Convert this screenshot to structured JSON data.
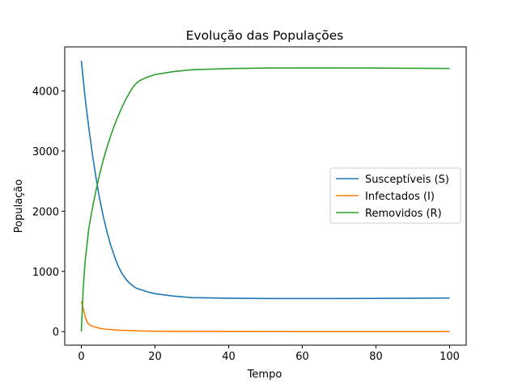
{
  "chart_data": {
    "type": "line",
    "title": "Evolução das Populações",
    "xlabel": "Tempo",
    "ylabel": "População",
    "xlim": [
      -4.5,
      104.5
    ],
    "ylim": [
      -225,
      4730
    ],
    "xticks": [
      0,
      20,
      40,
      60,
      80,
      100
    ],
    "yticks": [
      0,
      1000,
      2000,
      3000,
      4000
    ],
    "grid": false,
    "legend_position": "center-right",
    "series": [
      {
        "name": "Susceptíveis (S)",
        "color": "#1f77b4",
        "x": [
          0,
          1,
          2,
          3,
          4,
          5,
          6,
          7,
          8,
          9,
          10,
          11,
          12,
          13,
          14,
          15,
          16,
          18,
          20,
          25,
          30,
          40,
          50,
          60,
          70,
          80,
          90,
          100
        ],
        "y": [
          4500,
          3900,
          3400,
          2950,
          2550,
          2200,
          1900,
          1650,
          1430,
          1250,
          1090,
          970,
          880,
          810,
          760,
          720,
          700,
          660,
          630,
          590,
          565,
          555,
          550,
          550,
          550,
          552,
          555,
          558
        ]
      },
      {
        "name": "Infectados (I)",
        "color": "#ff7f0e",
        "x": [
          0,
          0.5,
          1,
          1.5,
          2,
          3,
          4,
          5,
          6,
          8,
          10,
          15,
          20,
          30,
          40,
          60,
          80,
          100
        ],
        "y": [
          500,
          380,
          260,
          170,
          120,
          90,
          70,
          55,
          45,
          32,
          24,
          12,
          6,
          3,
          2,
          1,
          1,
          1
        ]
      },
      {
        "name": "Removidos (R)",
        "color": "#2ca02c",
        "x": [
          0,
          0.5,
          1,
          2,
          3,
          4,
          5,
          6,
          7,
          8,
          9,
          10,
          11,
          12,
          13,
          14,
          15,
          16,
          18,
          20,
          25,
          30,
          40,
          50,
          60,
          70,
          80,
          90,
          100
        ],
        "y": [
          0,
          700,
          1150,
          1700,
          2050,
          2350,
          2620,
          2860,
          3070,
          3260,
          3430,
          3580,
          3720,
          3850,
          3960,
          4060,
          4130,
          4175,
          4230,
          4270,
          4320,
          4350,
          4370,
          4378,
          4380,
          4380,
          4378,
          4375,
          4372
        ]
      }
    ]
  }
}
